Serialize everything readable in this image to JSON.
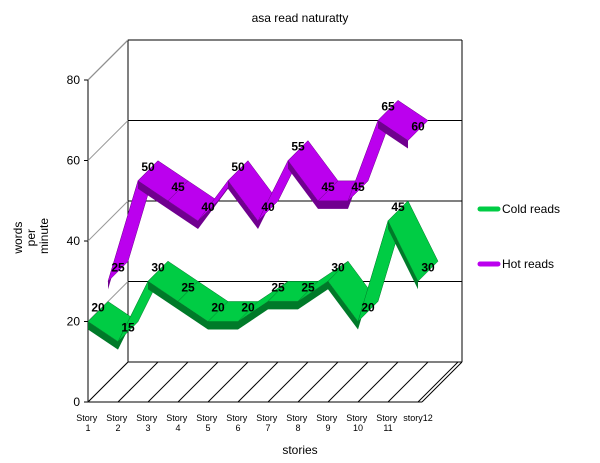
{
  "chart_data": {
    "type": "line3d",
    "title": "asa read naturatty",
    "xlabel": "stories",
    "ylabel": "words per minute",
    "categories": [
      "Story 1",
      "Story 2",
      "Story 3",
      "Story 4",
      "Story 5",
      "Story 6",
      "Story 7",
      "Story 8",
      "Story 9",
      "Story 10",
      "Story 11",
      "story12"
    ],
    "series": [
      {
        "name": "Cold reads",
        "color": "#00cc44",
        "values": [
          20,
          15,
          30,
          25,
          20,
          20,
          25,
          25,
          30,
          20,
          45,
          30
        ]
      },
      {
        "name": "Hot reads",
        "color": "#bb00ee",
        "values": [
          25,
          50,
          45,
          40,
          50,
          40,
          55,
          45,
          45,
          65,
          60,
          null
        ]
      }
    ],
    "ylim": [
      0,
      80
    ],
    "yticks": [
      0,
      20,
      40,
      60,
      80
    ],
    "grid": true,
    "legend": "right"
  }
}
